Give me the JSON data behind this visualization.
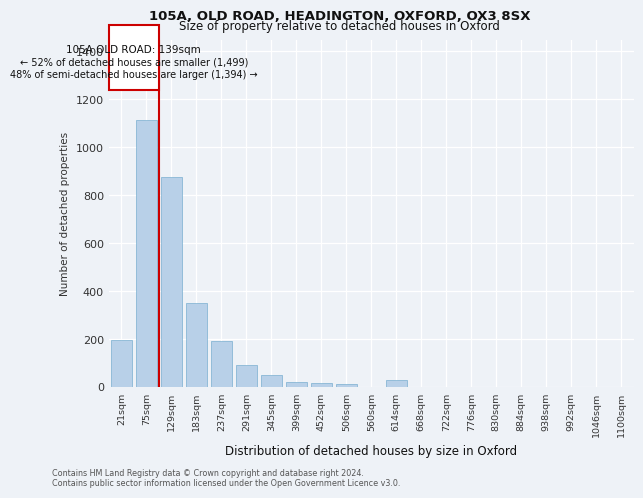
{
  "title1": "105A, OLD ROAD, HEADINGTON, OXFORD, OX3 8SX",
  "title2": "Size of property relative to detached houses in Oxford",
  "xlabel": "Distribution of detached houses by size in Oxford",
  "ylabel": "Number of detached properties",
  "categories": [
    "21sqm",
    "75sqm",
    "129sqm",
    "183sqm",
    "237sqm",
    "291sqm",
    "345sqm",
    "399sqm",
    "452sqm",
    "506sqm",
    "560sqm",
    "614sqm",
    "668sqm",
    "722sqm",
    "776sqm",
    "830sqm",
    "884sqm",
    "938sqm",
    "992sqm",
    "1046sqm",
    "1100sqm"
  ],
  "values": [
    195,
    1115,
    875,
    350,
    190,
    90,
    52,
    22,
    18,
    14,
    0,
    30,
    0,
    0,
    0,
    0,
    0,
    0,
    0,
    0,
    0
  ],
  "bar_color": "#b8d0e8",
  "bar_edge_color": "#7aafd0",
  "property_label": "105A OLD ROAD: 139sqm",
  "annotation_line1": "← 52% of detached houses are smaller (1,499)",
  "annotation_line2": "48% of semi-detached houses are larger (1,394) →",
  "vline_color": "#cc0000",
  "box_color": "#cc0000",
  "ylim": [
    0,
    1450
  ],
  "yticks": [
    0,
    200,
    400,
    600,
    800,
    1000,
    1200,
    1400
  ],
  "footer_line1": "Contains HM Land Registry data © Crown copyright and database right 2024.",
  "footer_line2": "Contains public sector information licensed under the Open Government Licence v3.0.",
  "bg_color": "#eef2f7"
}
